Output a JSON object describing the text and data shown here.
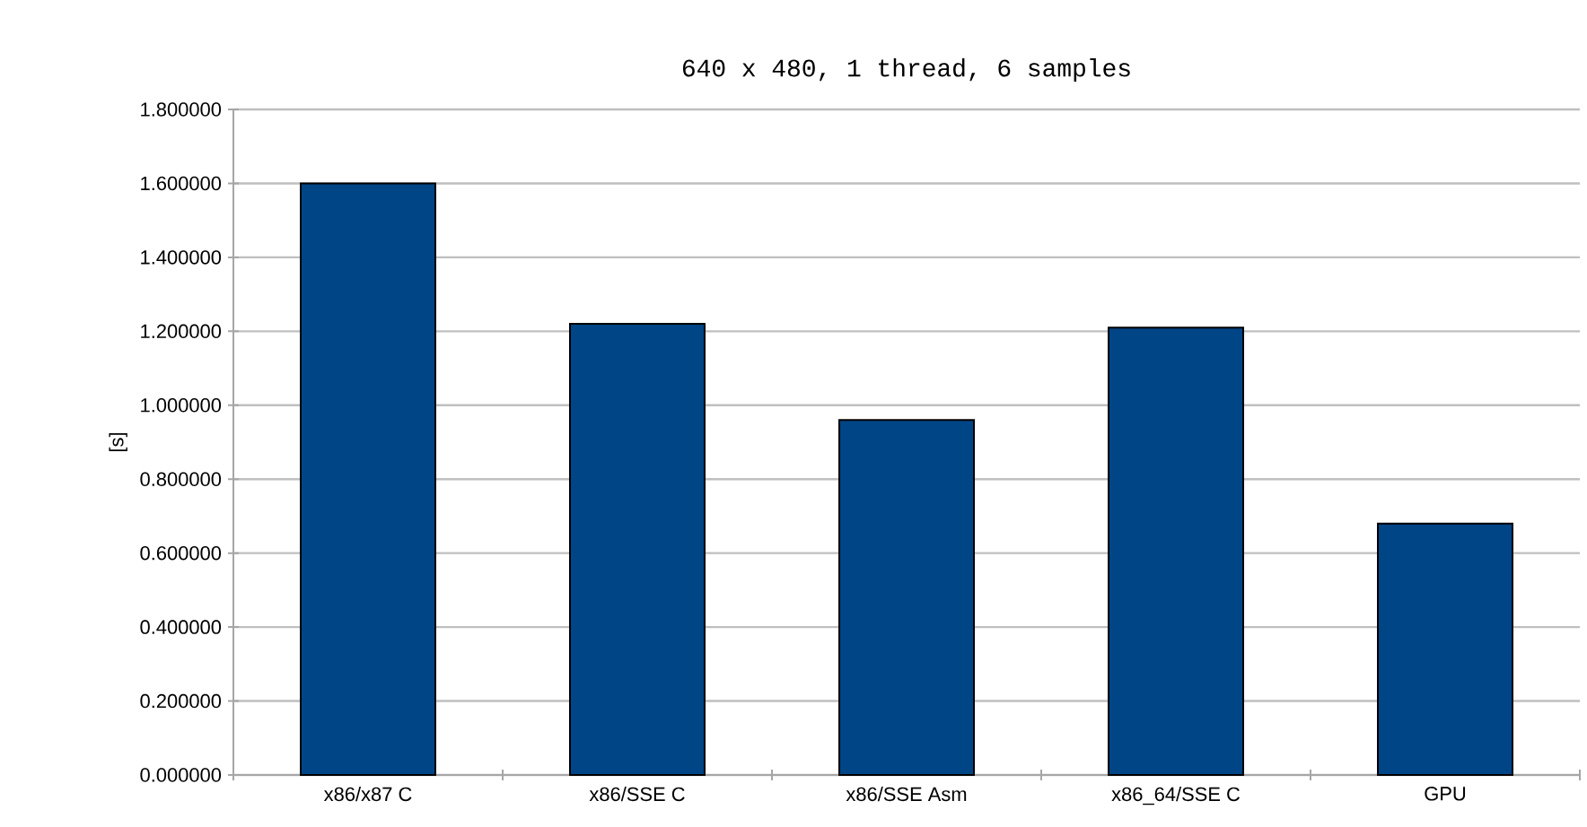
{
  "chart_data": {
    "type": "bar",
    "title": "640 x 480, 1 thread, 6 samples",
    "ylabel": "[s]",
    "categories": [
      "x86/x87 C",
      "x86/SSE C",
      "x86/SSE Asm",
      "x86_64/SSE C",
      "GPU"
    ],
    "values": [
      1.6,
      1.22,
      0.96,
      1.21,
      0.68
    ],
    "color": "#004586",
    "ylim": [
      0,
      1.8
    ],
    "yticks": [
      {
        "value": 0,
        "label": "0.000000"
      },
      {
        "value": 0.2,
        "label": "0.200000"
      },
      {
        "value": 0.4,
        "label": "0.400000"
      },
      {
        "value": 0.6,
        "label": "0.600000"
      },
      {
        "value": 0.8,
        "label": "0.800000"
      },
      {
        "value": 1.0,
        "label": "1.000000"
      },
      {
        "value": 1.2,
        "label": "1.200000"
      },
      {
        "value": 1.4,
        "label": "1.400000"
      },
      {
        "value": 1.6,
        "label": "1.600000"
      },
      {
        "value": 1.8,
        "label": "1.800000"
      }
    ],
    "grid": "y"
  }
}
